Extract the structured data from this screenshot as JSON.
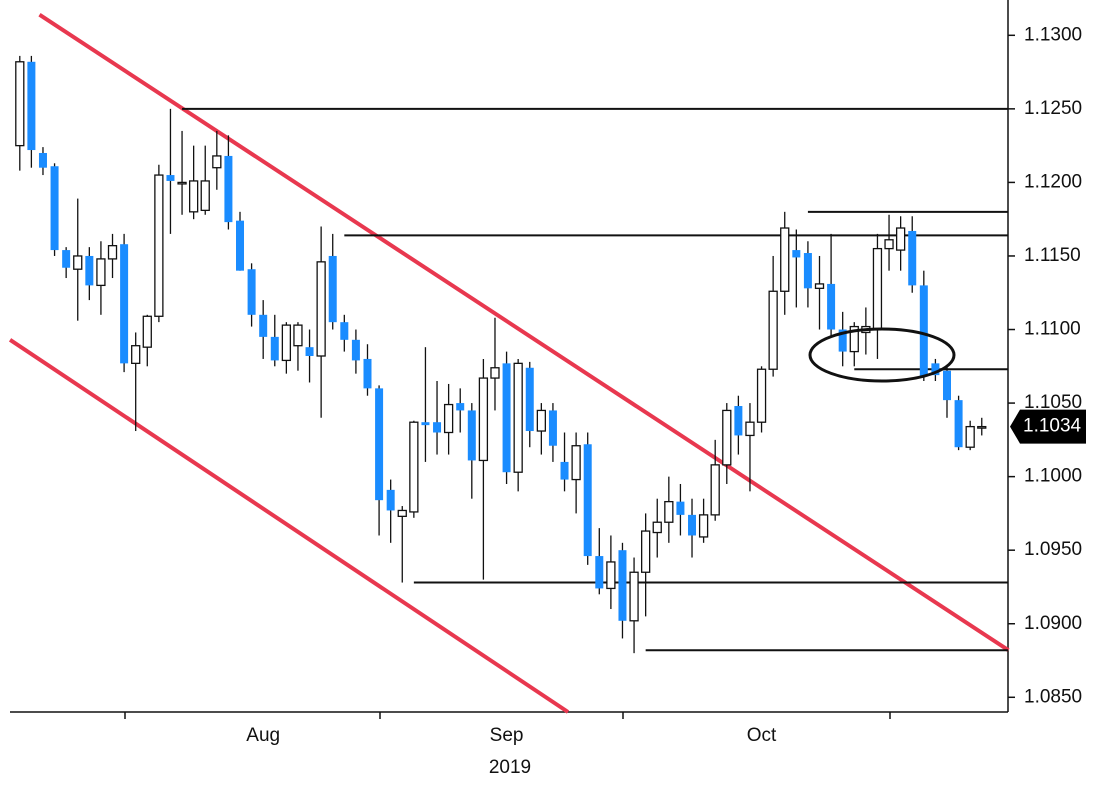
{
  "chart_data": {
    "type": "candlestick",
    "up_color": "#ffffff",
    "down_color": "#1a8cff",
    "wick_color": "#111111",
    "channel_color": "#e8384f",
    "level_color": "#111111",
    "categories": [
      null,
      null,
      null,
      null,
      null,
      null,
      null,
      null,
      null,
      null,
      null,
      null,
      null,
      null,
      null,
      null,
      null,
      null,
      null,
      null,
      null,
      "Aug",
      null,
      null,
      null,
      null,
      null,
      null,
      null,
      null,
      null,
      null,
      null,
      null,
      null,
      null,
      null,
      null,
      null,
      null,
      null,
      null,
      "Sep",
      null,
      null,
      null,
      null,
      null,
      null,
      null,
      null,
      null,
      null,
      null,
      null,
      null,
      null,
      null,
      null,
      null,
      null,
      null,
      null,
      null,
      "Oct",
      null,
      null,
      null,
      null,
      null,
      null,
      null,
      null,
      null,
      null,
      null,
      null,
      null,
      null,
      null,
      null,
      null,
      null,
      null
    ],
    "x_axis_year": "2019",
    "open": [
      1.1225,
      1.1282,
      1.122,
      1.1211,
      1.1154,
      1.1141,
      1.115,
      1.113,
      1.1148,
      1.1158,
      1.1077,
      1.1088,
      1.1109,
      1.1205,
      1.1199,
      1.118,
      1.1181,
      1.121,
      1.1218,
      1.1174,
      1.1141,
      1.111,
      1.1095,
      1.1079,
      1.1089,
      1.1088,
      1.1082,
      1.115,
      1.1105,
      1.1093,
      1.108,
      1.106,
      1.0991,
      1.0973,
      1.0976,
      1.1037,
      1.1037,
      1.103,
      1.105,
      1.1045,
      1.1011,
      1.1067,
      1.1077,
      1.1003,
      1.1074,
      1.1031,
      1.1045,
      1.101,
      1.0998,
      1.1022,
      1.0946,
      1.0924,
      1.095,
      1.0902,
      1.0935,
      1.0962,
      1.0969,
      1.0983,
      1.0974,
      1.0959,
      1.0974,
      1.1008,
      1.1048,
      1.1028,
      1.1037,
      1.1073,
      1.1126,
      1.1154,
      1.1152,
      1.1128,
      1.1131,
      1.11,
      1.1085,
      1.1098,
      1.11,
      1.1155,
      1.1154,
      1.1167,
      1.113,
      1.1077,
      1.1072,
      1.1052,
      1.102,
      1.1033
    ],
    "high": [
      1.1286,
      1.1286,
      1.1224,
      1.1213,
      1.1156,
      1.1189,
      1.1156,
      1.116,
      1.1165,
      1.1165,
      1.1098,
      1.111,
      1.1212,
      1.125,
      1.1235,
      1.1225,
      1.1225,
      1.1235,
      1.1232,
      1.118,
      1.1145,
      1.112,
      1.111,
      1.1105,
      1.1105,
      1.11,
      1.117,
      1.1165,
      1.111,
      1.11,
      1.109,
      1.1062,
      1.0998,
      1.098,
      1.1038,
      1.1088,
      1.1065,
      1.1063,
      1.106,
      1.105,
      1.108,
      1.1108,
      1.1085,
      1.108,
      1.1078,
      1.105,
      1.105,
      1.103,
      1.103,
      1.103,
      1.0965,
      1.096,
      1.0955,
      1.0945,
      1.0975,
      1.0985,
      1.1,
      1.0995,
      1.0985,
      1.0985,
      1.1025,
      1.105,
      1.1055,
      1.105,
      1.1075,
      1.115,
      1.118,
      1.1168,
      1.116,
      1.115,
      1.1165,
      1.1112,
      1.1105,
      1.1115,
      1.1165,
      1.1178,
      1.1177,
      1.1177,
      1.114,
      1.108,
      1.1075,
      1.1055,
      1.1038,
      1.104
    ],
    "low": [
      1.1208,
      1.121,
      1.1205,
      1.115,
      1.1135,
      1.1106,
      1.112,
      1.111,
      1.1135,
      1.1071,
      1.1031,
      1.1075,
      1.1105,
      1.1165,
      1.1178,
      1.1175,
      1.1178,
      1.1195,
      1.1168,
      1.114,
      1.1102,
      1.108,
      1.1075,
      1.107,
      1.1072,
      1.1064,
      1.104,
      1.11,
      1.1085,
      1.107,
      1.1055,
      1.096,
      1.0955,
      1.0928,
      1.0972,
      1.101,
      1.1015,
      1.1015,
      1.103,
      1.0985,
      1.093,
      1.1045,
      1.0995,
      1.099,
      1.102,
      1.1015,
      1.101,
      1.099,
      1.0975,
      1.094,
      1.092,
      1.091,
      1.089,
      1.088,
      1.0905,
      1.0945,
      1.0955,
      1.096,
      1.0945,
      1.0955,
      1.097,
      1.0995,
      1.1015,
      1.099,
      1.103,
      1.1068,
      1.111,
      1.1115,
      1.1115,
      1.11,
      1.1095,
      1.1075,
      1.1075,
      1.1083,
      1.108,
      1.114,
      1.114,
      1.1125,
      1.1065,
      1.1065,
      1.104,
      1.1018,
      1.1018,
      1.1028
    ],
    "close": [
      1.1282,
      1.1222,
      1.121,
      1.1154,
      1.1142,
      1.115,
      1.113,
      1.1148,
      1.1157,
      1.1077,
      1.1089,
      1.1109,
      1.1205,
      1.1201,
      1.12,
      1.1201,
      1.1201,
      1.1218,
      1.1173,
      1.114,
      1.111,
      1.1095,
      1.1079,
      1.1103,
      1.1103,
      1.1082,
      1.1146,
      1.1105,
      1.1093,
      1.1079,
      1.106,
      1.0984,
      1.0977,
      1.0977,
      1.1037,
      1.1035,
      1.103,
      1.1049,
      1.1045,
      1.1011,
      1.1067,
      1.1074,
      1.1003,
      1.1077,
      1.1031,
      1.1045,
      1.1021,
      1.0998,
      1.1021,
      1.0946,
      1.0924,
      1.0942,
      1.0902,
      1.0935,
      1.0963,
      1.0969,
      1.0983,
      1.0974,
      1.096,
      1.0974,
      1.1008,
      1.1045,
      1.1028,
      1.1037,
      1.1073,
      1.1126,
      1.1169,
      1.1149,
      1.1128,
      1.1131,
      1.11,
      1.1085,
      1.1102,
      1.1102,
      1.1155,
      1.1161,
      1.1169,
      1.113,
      1.1068,
      1.1069,
      1.1052,
      1.102,
      1.1034,
      1.1034
    ],
    "ylim": [
      1.084,
      1.1324
    ],
    "yticks": [
      {
        "value": 1.085,
        "label": "1.0850"
      },
      {
        "value": 1.09,
        "label": "1.0900"
      },
      {
        "value": 1.095,
        "label": "1.0950"
      },
      {
        "value": 1.1,
        "label": "1.1000"
      },
      {
        "value": 1.105,
        "label": "1.1050"
      },
      {
        "value": 1.11,
        "label": "1.1100"
      },
      {
        "value": 1.115,
        "label": "1.1150"
      },
      {
        "value": 1.12,
        "label": "1.1200"
      },
      {
        "value": 1.125,
        "label": "1.1250"
      },
      {
        "value": 1.13,
        "label": "1.1300"
      }
    ],
    "last_price": {
      "value": 1.1034,
      "label": "1.1034"
    },
    "levels": [
      {
        "value": 1.125,
        "start": 14
      },
      {
        "value": 1.1164,
        "start": 28
      },
      {
        "value": 1.118,
        "start": 68
      },
      {
        "value": 1.1073,
        "start": 72
      },
      {
        "value": 1.0928,
        "start": 34
      },
      {
        "value": 1.0882,
        "start": 54
      }
    ],
    "channel": [
      {
        "from": [
          1.7,
          1.1314
        ],
        "to": [
          85.3,
          1.0882
        ]
      },
      {
        "from": [
          -0.84,
          1.1093
        ],
        "to": [
          47.3,
          1.084
        ]
      }
    ]
  }
}
